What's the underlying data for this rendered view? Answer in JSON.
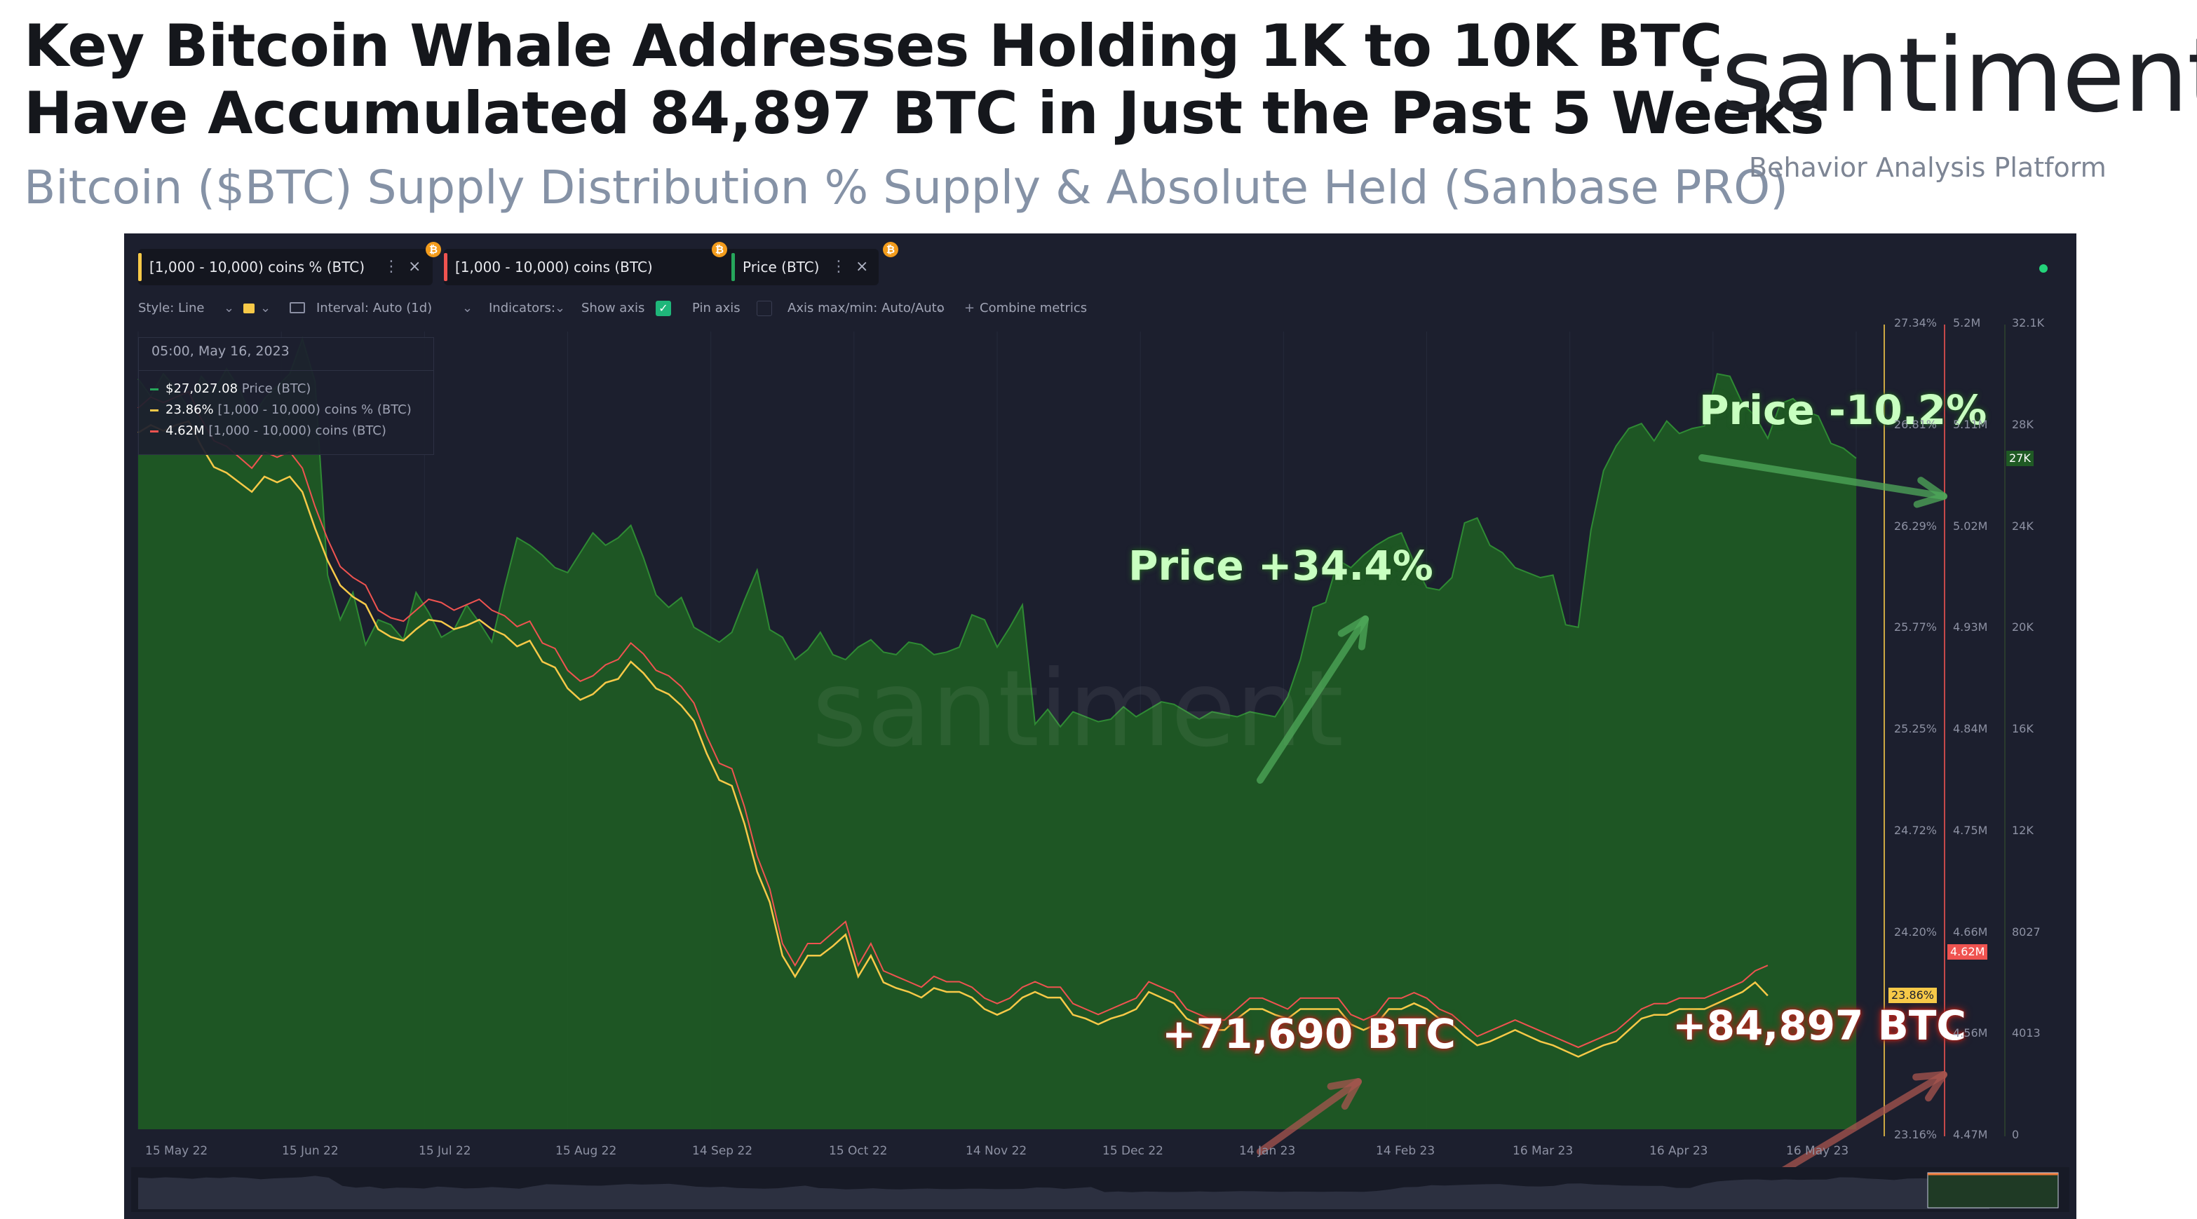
{
  "header": {
    "title_line1": "Key Bitcoin Whale Addresses Holding 1K to 10K BTC",
    "title_line2": "Have Accumulated 84,897 BTC in Just the Past 5 Weeks",
    "subtitle": "Bitcoin ($BTC) Supply Distribution % Supply & Absolute Held (Sanbase PRO)",
    "logo": "·santiment·",
    "logo_tagline": "Behavior Analysis Platform"
  },
  "metric_tags": [
    {
      "label": "[1,000 - 10,000) coins % (BTC)",
      "color": "#f7c948",
      "icon": "bitcoin-icon"
    },
    {
      "label": "[1,000 - 10,000) coins (BTC)",
      "color": "#ef5350",
      "icon": "bitcoin-icon"
    },
    {
      "label": "Price (BTC)",
      "color": "#26a65b",
      "icon": "bitcoin-icon"
    }
  ],
  "toolbar": {
    "style": "Style: Line",
    "interval": "Interval: Auto (1d)",
    "indicators": "Indicators:",
    "show_axis": "Show axis",
    "pin_axis": "Pin axis",
    "axis_maxmin": "Axis max/min: Auto/Auto",
    "combine": "Combine metrics"
  },
  "tooltip": {
    "date": "05:00, May 16, 2023",
    "rows": [
      {
        "value": "$27,027.08",
        "label": "Price (BTC)",
        "color": "#26a65b"
      },
      {
        "value": "23.86%",
        "label": "[1,000 - 10,000) coins % (BTC)",
        "color": "#f7c948"
      },
      {
        "value": "4.62M",
        "label": "[1,000 - 10,000) coins (BTC)",
        "color": "#ef5350"
      }
    ]
  },
  "annotations": {
    "price_up": "Price +34.4%",
    "price_down": "Price -10.2%",
    "btc_1": "+71,690 BTC",
    "btc_2": "+84,897 BTC"
  },
  "watermark": "santiment",
  "colors": {
    "panel_bg": "#1c1f2e",
    "price_fill": "#1f5a24",
    "price_line": "#2f8a34",
    "pct_line": "#f7c948",
    "abs_line": "#ef5350",
    "green_text": "#c8ffc0",
    "red_glow": "#b3261e"
  },
  "chart_data": {
    "type": "line",
    "x_ticks": [
      "15 May 22",
      "15 Jun 22",
      "15 Jul 22",
      "15 Aug 22",
      "14 Sep 22",
      "15 Oct 22",
      "14 Nov 22",
      "15 Dec 22",
      "14 Jan 23",
      "14 Feb 23",
      "16 Mar 23",
      "16 Apr 23",
      "16 May 23"
    ],
    "axes": {
      "pct": {
        "ticks": [
          "27.34%",
          "26.81%",
          "26.29%",
          "25.77%",
          "25.25%",
          "24.72%",
          "24.20%",
          "23.16%"
        ],
        "current": "23.86%",
        "color": "#f7c948"
      },
      "abs": {
        "ticks": [
          "5.2M",
          "5.11M",
          "5.02M",
          "4.93M",
          "4.84M",
          "4.75M",
          "4.66M",
          "4.56M",
          "4.47M"
        ],
        "current": "4.62M",
        "color": "#ef5350"
      },
      "price": {
        "ticks": [
          "32.1K",
          "28K",
          "24K",
          "20K",
          "16K",
          "12K",
          "8027",
          "4013",
          "0"
        ],
        "current": "27K",
        "color": "#26a65b",
        "range": [
          0,
          32100
        ]
      }
    },
    "series": [
      {
        "name": "Price (BTC)",
        "values": [
          30200,
          29500,
          30400,
          29800,
          29000,
          30300,
          29700,
          30600,
          29800,
          28600,
          29400,
          29900,
          30400,
          31800,
          30100,
          22300,
          20500,
          21600,
          19500,
          20500,
          20300,
          19700,
          21600,
          20800,
          19800,
          20100,
          21100,
          20400,
          19600,
          21800,
          23800,
          23500,
          23100,
          22600,
          22400,
          23200,
          24000,
          23500,
          23800,
          24300,
          23000,
          21500,
          21000,
          21400,
          20200,
          19900,
          19600,
          20000,
          21300,
          22500,
          20100,
          19800,
          18900,
          19300,
          20000,
          19100,
          18900,
          19400,
          19700,
          19200,
          19100,
          19600,
          19500,
          19100,
          19200,
          19400,
          20700,
          20500,
          19400,
          20200,
          21100,
          16300,
          16900,
          16200,
          16800,
          16600,
          16400,
          16500,
          17000,
          16600,
          16900,
          17200,
          17100,
          16800,
          16500,
          16800,
          16700,
          16600,
          16800,
          16700,
          16600,
          17400,
          18900,
          21000,
          21200,
          22900,
          22600,
          23100,
          23500,
          23800,
          24000,
          22800,
          21800,
          21700,
          22200,
          24400,
          24600,
          23500,
          23200,
          22600,
          22400,
          22200,
          22300,
          20300,
          20200,
          24100,
          26500,
          27500,
          28200,
          28400,
          27700,
          28500,
          28000,
          28200,
          28300,
          30400,
          30300,
          29200,
          28700,
          27800,
          29200,
          29400,
          28900,
          28700,
          27600,
          27400,
          27000
        ]
      },
      {
        "name": "[1,000 - 10,000) coins (BTC)",
        "values": [
          5.13,
          5.14,
          5.135,
          5.14,
          5.145,
          5.12,
          5.1,
          5.095,
          5.085,
          5.075,
          5.09,
          5.085,
          5.09,
          5.075,
          5.04,
          5.01,
          4.985,
          4.975,
          4.968,
          4.945,
          4.938,
          4.935,
          4.945,
          4.955,
          4.952,
          4.945,
          4.95,
          4.955,
          4.945,
          4.94,
          4.93,
          4.935,
          4.915,
          4.91,
          4.89,
          4.88,
          4.885,
          4.895,
          4.9,
          4.915,
          4.905,
          4.89,
          4.885,
          4.875,
          4.86,
          4.83,
          4.805,
          4.8,
          4.765,
          4.72,
          4.69,
          4.64,
          4.62,
          4.64,
          4.64,
          4.65,
          4.66,
          4.62,
          4.64,
          4.615,
          4.61,
          4.605,
          4.6,
          4.61,
          4.605,
          4.605,
          4.6,
          4.59,
          4.585,
          4.59,
          4.6,
          4.605,
          4.6,
          4.6,
          4.585,
          4.58,
          4.575,
          4.58,
          4.585,
          4.59,
          4.605,
          4.6,
          4.595,
          4.58,
          4.575,
          4.57,
          4.57,
          4.58,
          4.59,
          4.59,
          4.585,
          4.58,
          4.59,
          4.59,
          4.59,
          4.59,
          4.575,
          4.57,
          4.575,
          4.59,
          4.59,
          4.595,
          4.59,
          4.58,
          4.575,
          4.565,
          4.555,
          4.56,
          4.565,
          4.57,
          4.565,
          4.56,
          4.555,
          4.55,
          4.545,
          4.55,
          4.555,
          4.56,
          4.57,
          4.58,
          4.585,
          4.585,
          4.59,
          4.59,
          4.59,
          4.595,
          4.6,
          4.605,
          4.615,
          4.62
        ]
      },
      {
        "name": "[1,000 - 10,000) coins % (BTC)",
        "values": [
          26.81,
          26.85,
          26.82,
          26.85,
          26.87,
          26.74,
          26.63,
          26.6,
          26.55,
          26.5,
          26.58,
          26.55,
          26.58,
          26.5,
          26.31,
          26.14,
          26.01,
          25.95,
          25.91,
          25.78,
          25.74,
          25.72,
          25.78,
          25.83,
          25.82,
          25.78,
          25.8,
          25.83,
          25.78,
          25.75,
          25.69,
          25.72,
          25.61,
          25.58,
          25.47,
          25.41,
          25.44,
          25.5,
          25.52,
          25.61,
          25.55,
          25.47,
          25.44,
          25.38,
          25.3,
          25.13,
          24.99,
          24.96,
          24.76,
          24.51,
          24.35,
          24.07,
          23.96,
          24.07,
          24.07,
          24.12,
          24.18,
          23.96,
          24.07,
          23.93,
          23.9,
          23.88,
          23.85,
          23.9,
          23.88,
          23.88,
          23.85,
          23.79,
          23.76,
          23.79,
          23.85,
          23.88,
          23.85,
          23.85,
          23.76,
          23.74,
          23.71,
          23.74,
          23.76,
          23.79,
          23.88,
          23.85,
          23.82,
          23.74,
          23.71,
          23.68,
          23.68,
          23.74,
          23.79,
          23.79,
          23.76,
          23.74,
          23.79,
          23.79,
          23.79,
          23.79,
          23.71,
          23.68,
          23.71,
          23.79,
          23.79,
          23.82,
          23.79,
          23.74,
          23.71,
          23.65,
          23.6,
          23.62,
          23.65,
          23.68,
          23.65,
          23.62,
          23.6,
          23.57,
          23.54,
          23.57,
          23.6,
          23.62,
          23.68,
          23.74,
          23.76,
          23.76,
          23.79,
          23.79,
          23.79,
          23.82,
          23.85,
          23.88,
          23.93,
          23.86
        ]
      }
    ],
    "ylim_abs": [
      4.47,
      5.2
    ],
    "ylim_pct": [
      23.16,
      27.34
    ],
    "legend": "top-left"
  }
}
